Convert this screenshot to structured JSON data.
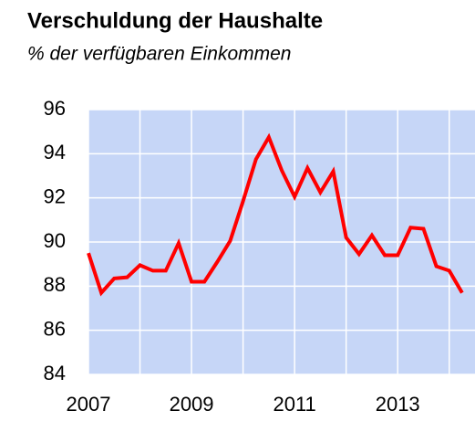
{
  "chart_data": {
    "type": "line",
    "title": "Verschuldung der Haushalte",
    "subtitle": "% der verfügbaren Einkommen",
    "x": [
      2007,
      2007.25,
      2007.5,
      2007.75,
      2008,
      2008.25,
      2008.5,
      2008.75,
      2009,
      2009.25,
      2009.5,
      2009.75,
      2010,
      2010.25,
      2010.5,
      2010.75,
      2011,
      2011.25,
      2011.5,
      2011.75,
      2012,
      2012.25,
      2012.5,
      2012.75,
      2013,
      2013.25,
      2013.5,
      2013.75,
      2014,
      2014.25
    ],
    "series": [
      {
        "name": "Verschuldung",
        "color": "#ff0000",
        "values": [
          89.5,
          87.7,
          88.35,
          88.4,
          88.95,
          88.7,
          88.7,
          89.95,
          88.2,
          88.2,
          89.1,
          90.05,
          91.85,
          93.75,
          94.75,
          93.25,
          92.05,
          93.35,
          92.25,
          93.2,
          90.2,
          89.45,
          90.3,
          89.4,
          89.4,
          90.65,
          90.6,
          88.9,
          88.7,
          87.7
        ]
      }
    ],
    "xlim": [
      2007,
      2014.5
    ],
    "xticks": [
      2007,
      2009,
      2011,
      2013
    ],
    "ylim": [
      84,
      96
    ],
    "yticks": [
      84,
      86,
      88,
      90,
      92,
      94,
      96
    ],
    "grid": true,
    "plot_background": "#c6d6f7"
  }
}
